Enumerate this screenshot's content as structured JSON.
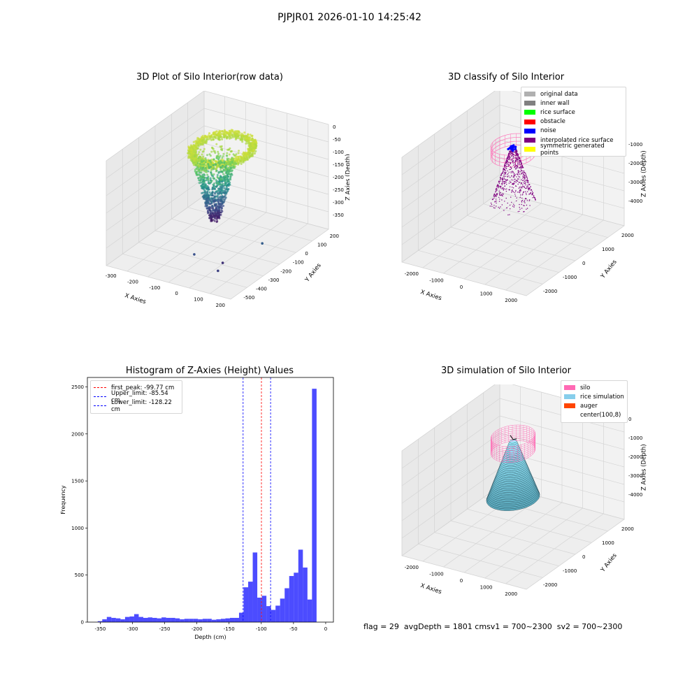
{
  "suptitle": "PJPJR01 2026-01-10 14:25:42",
  "panel1": {
    "title": "3D Plot of Silo Interior(row data)",
    "xlabel": "X Axies",
    "ylabel": "Y Axies",
    "zlabel": "Z Axies (Depth)",
    "xticks": [
      "-300",
      "-200",
      "-100",
      "0",
      "100",
      "200"
    ],
    "yticks": [
      "-500",
      "-400",
      "-300",
      "-200",
      "-100",
      "0",
      "100",
      "200"
    ],
    "zticks": [
      "0",
      "-50",
      "-100",
      "-150",
      "-200",
      "-250",
      "-300",
      "-350"
    ]
  },
  "panel2": {
    "title": "3D classify of Silo Interior",
    "xlabel": "X Axies",
    "ylabel": "Y Axies",
    "zlabel": "Z Axies (Depth)",
    "xticks": [
      "-2000",
      "-1000",
      "0",
      "1000",
      "2000"
    ],
    "yticks": [
      "-2000",
      "-1000",
      "0",
      "1000",
      "2000"
    ],
    "zticks": [
      "-1000",
      "-2000",
      "-3000",
      "-4000"
    ],
    "legend": [
      {
        "label": "original data",
        "color": "#b0b0b0"
      },
      {
        "label": "inner wall",
        "color": "#808080"
      },
      {
        "label": "rice surface",
        "color": "#00ff00"
      },
      {
        "label": "obstacle",
        "color": "#ff0000"
      },
      {
        "label": "noise",
        "color": "#0000ff"
      },
      {
        "label": "interpolated rice surface",
        "color": "#800080"
      },
      {
        "label": "symmetric generated points",
        "color": "#ffff00"
      }
    ]
  },
  "panel3": {
    "title": "3D simulation of Silo Interior",
    "xlabel": "X Axies",
    "ylabel": "Y Axies",
    "zlabel": "Z Axies (Depth)",
    "xticks": [
      "-2000",
      "-1000",
      "0",
      "1000",
      "2000"
    ],
    "yticks": [
      "-2000",
      "-1000",
      "0",
      "1000",
      "2000"
    ],
    "zticks": [
      "0",
      "-1000",
      "-2000",
      "-3000",
      "-4000"
    ],
    "legend": [
      {
        "label": "silo",
        "color": "#ff69b4"
      },
      {
        "label": "rice simulation",
        "color": "#87ceeb"
      },
      {
        "label": "auger",
        "color": "#ff4500"
      },
      {
        "label": "center(100,8)",
        "color": ""
      }
    ]
  },
  "status": {
    "flag": "flag = 29",
    "avg": "avgDepth = 1801 cmsv1 = 700~2300",
    "sv2": "sv2 = 700~2300"
  },
  "chart_data": {
    "type": "bar",
    "title": "Histogram of Z-Axies (Height) Values",
    "xlabel": "Depth (cm)",
    "ylabel": "Frequency",
    "xlim": [
      -370,
      12
    ],
    "ylim": [
      0,
      2600
    ],
    "xticks": [
      -350,
      -300,
      -250,
      -200,
      -150,
      -100,
      -50,
      0
    ],
    "yticks": [
      0,
      500,
      1000,
      1500,
      2000,
      2500
    ],
    "bin_width": 7.08,
    "bin_start": -354,
    "values": [
      10,
      30,
      55,
      45,
      40,
      30,
      55,
      60,
      85,
      55,
      45,
      50,
      45,
      40,
      50,
      45,
      45,
      40,
      30,
      35,
      35,
      35,
      30,
      35,
      35,
      25,
      30,
      35,
      40,
      45,
      45,
      100,
      370,
      430,
      740,
      260,
      280,
      170,
      130,
      175,
      250,
      360,
      490,
      525,
      770,
      580,
      240,
      2480
    ],
    "color": "#0000ff",
    "vlines": [
      {
        "label": "first_peak: -99.77 cm",
        "x": -99.77,
        "color": "#ff0000"
      },
      {
        "label": "Upper_limit: -85.54 cm",
        "x": -85.54,
        "color": "#0000ff"
      },
      {
        "label": "Lower_limit: -128.22 cm",
        "x": -128.22,
        "color": "#0000ff"
      }
    ]
  }
}
